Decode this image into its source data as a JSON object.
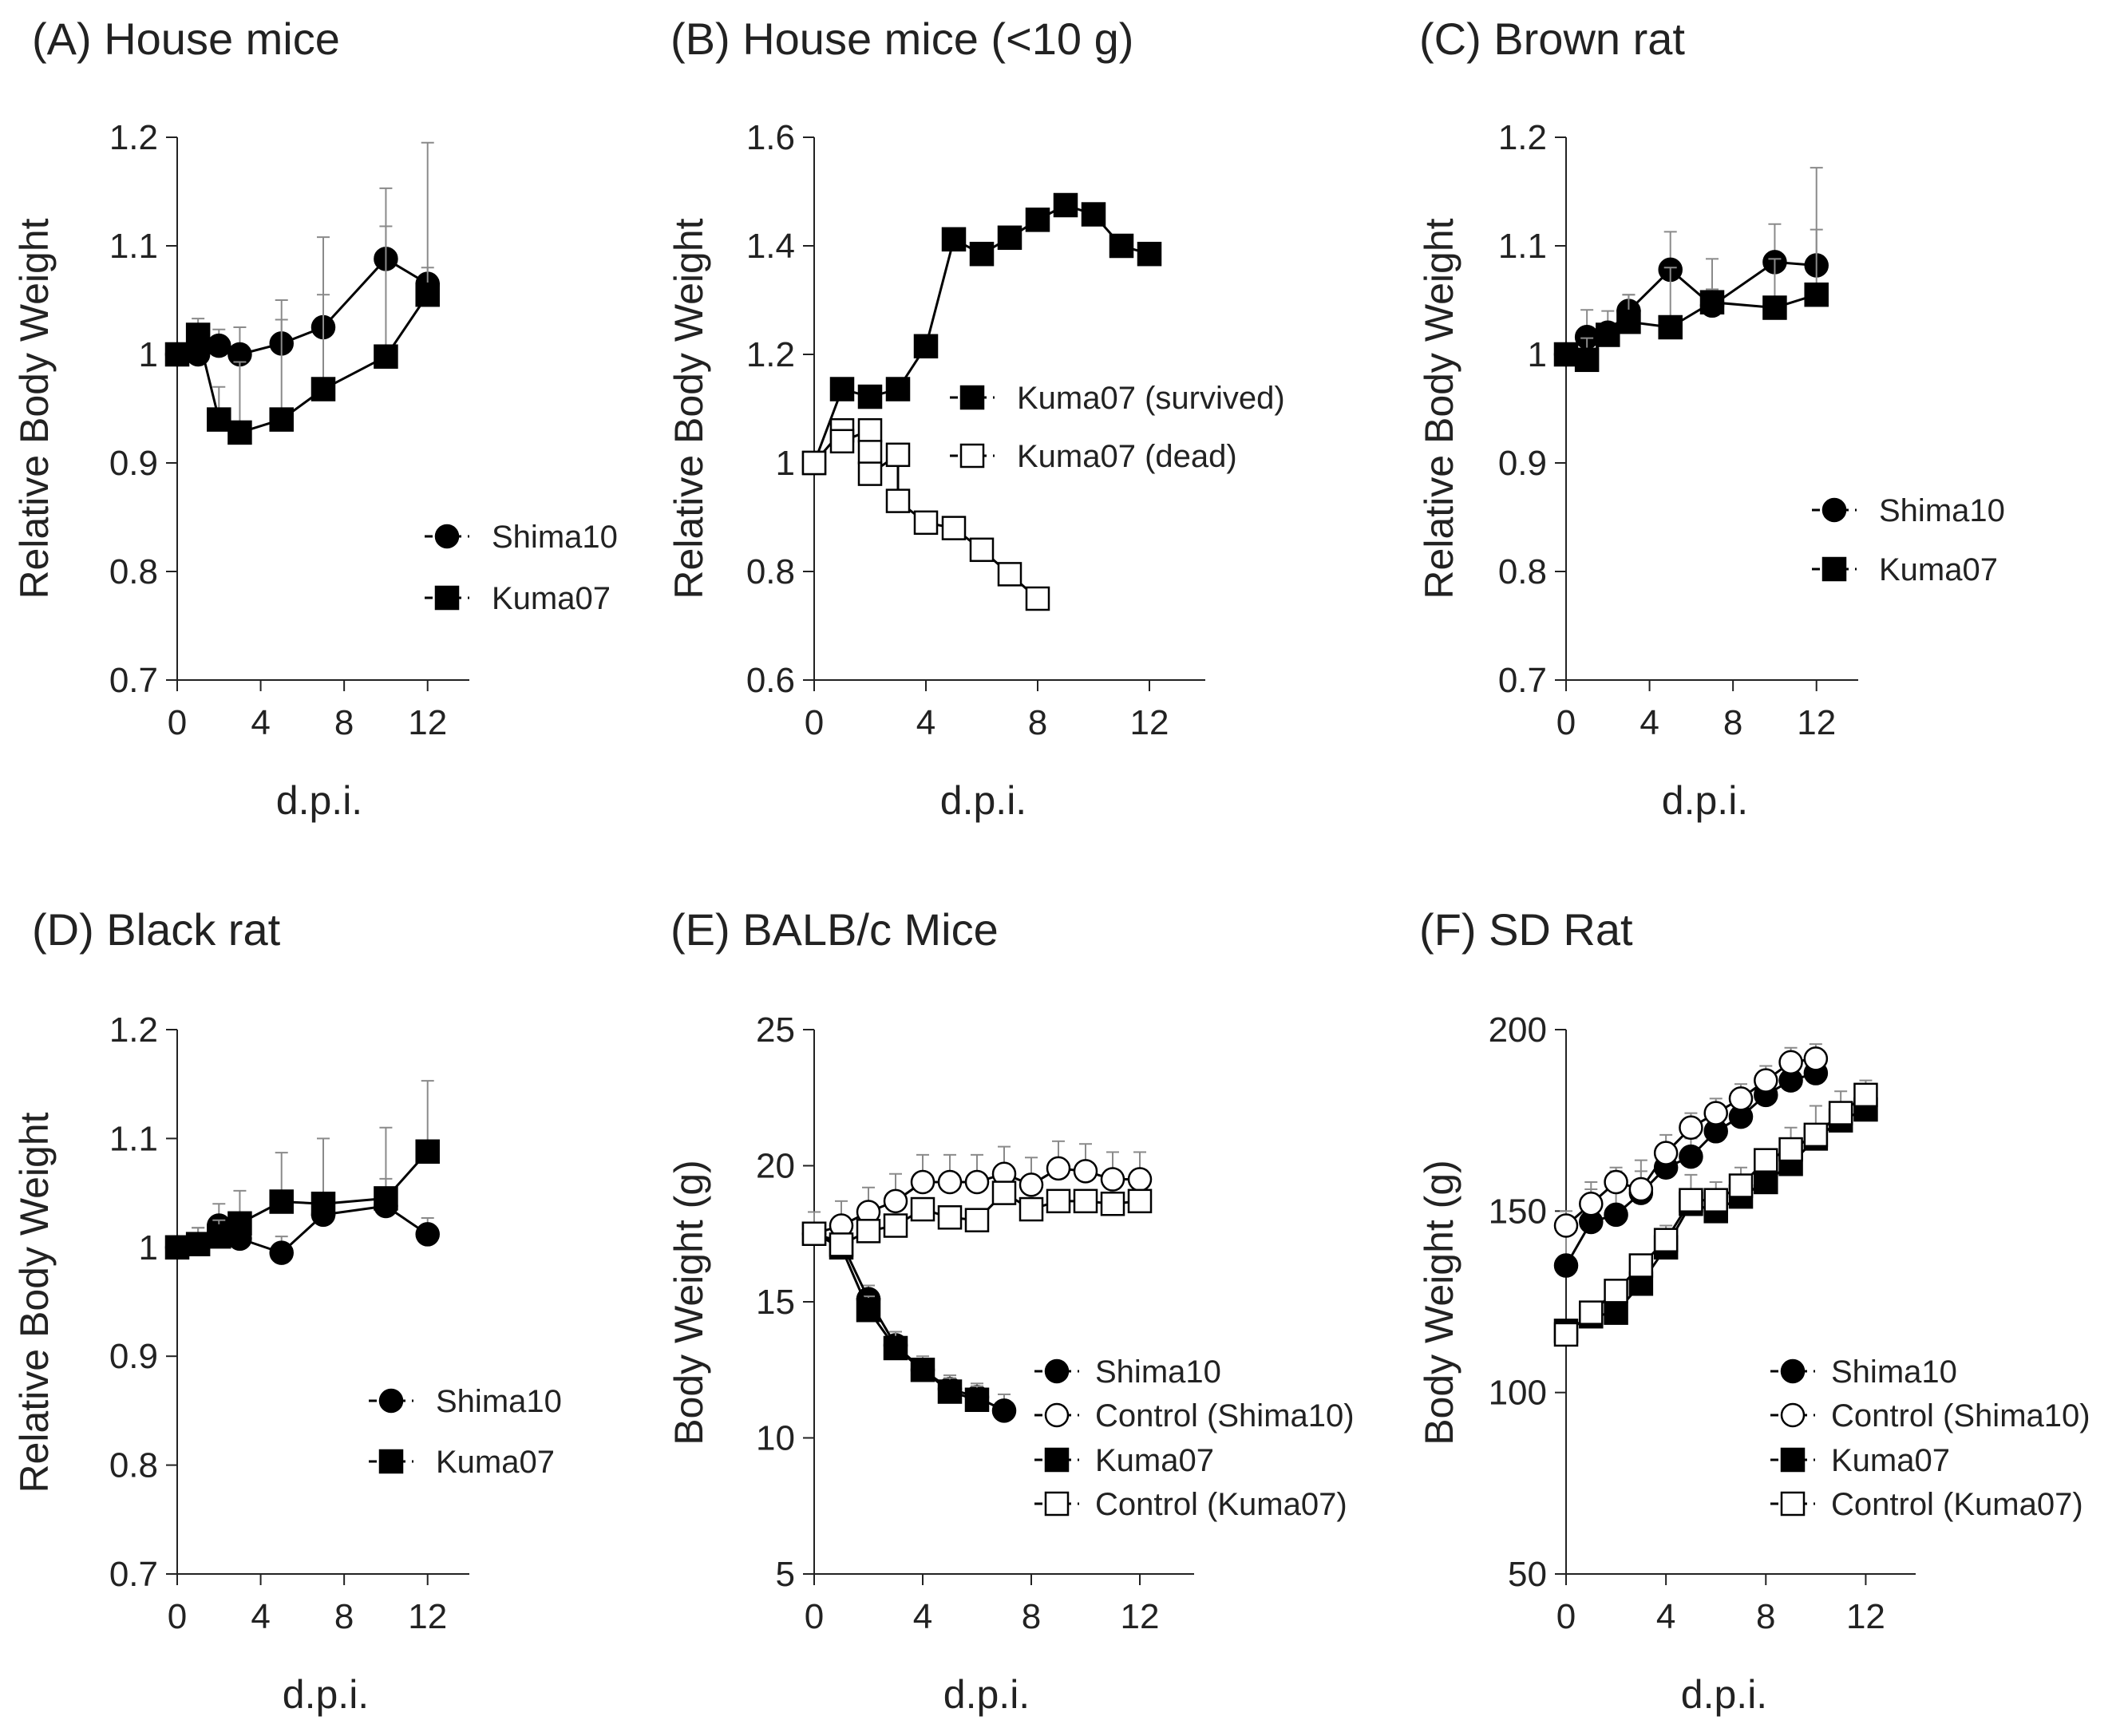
{
  "colors": {
    "ink": "#000000",
    "axis": "#222222",
    "error_bar": "#8a8a8a",
    "open_fill": "#ffffff"
  },
  "chart_data": [
    {
      "id": "A",
      "type": "line",
      "title": "(A) House mice",
      "xlabel": "d.p.i.",
      "ylabel": "Relative Body Weight",
      "xlim": [
        0,
        14
      ],
      "ylim": [
        0.7,
        1.2
      ],
      "xticks": [
        "0",
        "4",
        "8",
        "12"
      ],
      "xtick_values": [
        0,
        4,
        8,
        12
      ],
      "yticks": [
        "0.7",
        "0.8",
        "0.9",
        "1",
        "1.1",
        "1.2"
      ],
      "ytick_values": [
        0.7,
        0.8,
        0.9,
        1.0,
        1.1,
        1.2
      ],
      "legend_position": "right",
      "series": [
        {
          "name": "Shima10",
          "marker": "circle",
          "filled": true,
          "x": [
            0,
            1,
            2,
            3,
            5,
            7,
            10,
            12
          ],
          "y": [
            1.0,
            1.0,
            1.008,
            1.0,
            1.01,
            1.025,
            1.088,
            1.065
          ],
          "err": [
            0,
            0.02,
            0.015,
            0.025,
            0.022,
            0.03,
            0.03,
            0.015
          ]
        },
        {
          "name": "Kuma07",
          "marker": "square",
          "filled": true,
          "x": [
            0,
            1,
            2,
            3,
            5,
            7,
            10,
            12
          ],
          "y": [
            1.0,
            1.018,
            0.94,
            0.928,
            0.94,
            0.968,
            0.998,
            1.055
          ],
          "err": [
            0,
            0.015,
            0.03,
            0.065,
            0.11,
            0.14,
            0.155,
            0.14
          ]
        }
      ]
    },
    {
      "id": "B",
      "type": "line",
      "title": "(B) House mice (<10 g)",
      "xlabel": "d.p.i.",
      "ylabel": "Relative Body Weight",
      "xlim": [
        0,
        14
      ],
      "ylim": [
        0.6,
        1.6
      ],
      "xticks": [
        "0",
        "4",
        "8",
        "12"
      ],
      "xtick_values": [
        0,
        4,
        8,
        12
      ],
      "yticks": [
        "0.6",
        "0.8",
        "1",
        "1.2",
        "1.4",
        "1.6"
      ],
      "ytick_values": [
        0.6,
        0.8,
        1.0,
        1.2,
        1.4,
        1.6
      ],
      "legend_position": "center",
      "series": [
        {
          "name": "Kuma07 (survived)",
          "marker": "square",
          "filled": true,
          "x": [
            0,
            1,
            2,
            3,
            4,
            5,
            6,
            7,
            8,
            9,
            10,
            11,
            12
          ],
          "y": [
            1.0,
            1.136,
            1.122,
            1.136,
            1.215,
            1.412,
            1.385,
            1.415,
            1.448,
            1.475,
            1.458,
            1.4,
            1.385
          ],
          "err": [
            0,
            0,
            0,
            0,
            0,
            0,
            0,
            0,
            0,
            0,
            0,
            0,
            0
          ]
        },
        {
          "name": "Kuma07 (dead)",
          "marker": "square",
          "filled": false,
          "x": [
            0,
            1,
            1,
            2,
            2,
            2,
            3,
            3,
            4,
            5,
            6,
            7,
            8
          ],
          "y": [
            1.0,
            1.06,
            1.04,
            1.06,
            1.02,
            0.98,
            1.015,
            0.93,
            0.89,
            0.88,
            0.84,
            0.795,
            0.75
          ],
          "err": [
            0,
            0,
            0,
            0,
            0,
            0,
            0,
            0,
            0,
            0,
            0,
            0,
            0
          ]
        }
      ]
    },
    {
      "id": "C",
      "type": "line",
      "title": "(C) Brown rat",
      "xlabel": "d.p.i.",
      "ylabel": "Relative Body Weight",
      "xlim": [
        0,
        14
      ],
      "ylim": [
        0.7,
        1.2
      ],
      "xticks": [
        "0",
        "4",
        "8",
        "12"
      ],
      "xtick_values": [
        0,
        4,
        8,
        12
      ],
      "yticks": [
        "0.7",
        "0.8",
        "0.9",
        "1",
        "1.1",
        "1.2"
      ],
      "ytick_values": [
        0.7,
        0.8,
        0.9,
        1.0,
        1.1,
        1.2
      ],
      "legend_position": "right",
      "series": [
        {
          "name": "Shima10",
          "marker": "circle",
          "filled": true,
          "x": [
            0,
            1,
            2,
            3,
            5,
            7,
            10,
            12
          ],
          "y": [
            1.0,
            1.016,
            1.02,
            1.04,
            1.078,
            1.045,
            1.085,
            1.082
          ],
          "err": [
            0,
            0.025,
            0.02,
            0.015,
            0.035,
            0.015,
            0.035,
            0.09
          ]
        },
        {
          "name": "Kuma07",
          "marker": "square",
          "filled": true,
          "x": [
            0,
            1,
            2,
            3,
            5,
            7,
            10,
            12
          ],
          "y": [
            1.0,
            0.995,
            1.018,
            1.03,
            1.025,
            1.048,
            1.043,
            1.055
          ],
          "err": [
            0,
            0.02,
            0.01,
            0.025,
            0.055,
            0.04,
            0.045,
            0.06
          ]
        }
      ]
    },
    {
      "id": "D",
      "type": "line",
      "title": "(D) Black rat",
      "xlabel": "d.p.i.",
      "ylabel": "Relative Body Weight",
      "xlim": [
        0,
        14
      ],
      "ylim": [
        0.7,
        1.2
      ],
      "xticks": [
        "0",
        "4",
        "8",
        "12"
      ],
      "xtick_values": [
        0,
        4,
        8,
        12
      ],
      "yticks": [
        "0.7",
        "0.8",
        "0.9",
        "1",
        "1.1",
        "1.2"
      ],
      "ytick_values": [
        0.7,
        0.8,
        0.9,
        1.0,
        1.1,
        1.2
      ],
      "legend_position": "bottom-right",
      "series": [
        {
          "name": "Shima10",
          "marker": "circle",
          "filled": true,
          "x": [
            0,
            1,
            2,
            3,
            5,
            7,
            10,
            12
          ],
          "y": [
            1.0,
            1.003,
            1.02,
            1.008,
            0.995,
            1.03,
            1.038,
            1.012
          ],
          "err": [
            0,
            0.015,
            0.02,
            0.015,
            0.015,
            0.01,
            0.025,
            0.015
          ]
        },
        {
          "name": "Kuma07",
          "marker": "square",
          "filled": true,
          "x": [
            0,
            1,
            2,
            3,
            5,
            7,
            10,
            12
          ],
          "y": [
            1.0,
            1.003,
            1.01,
            1.022,
            1.042,
            1.04,
            1.045,
            1.088
          ],
          "err": [
            0,
            0.015,
            0.015,
            0.03,
            0.045,
            0.06,
            0.065,
            0.065
          ]
        }
      ]
    },
    {
      "id": "E",
      "type": "line",
      "title": "(E) BALB/c Mice",
      "xlabel": "d.p.i.",
      "ylabel": "Body Weight (g)",
      "xlim": [
        0,
        14
      ],
      "ylim": [
        5,
        25
      ],
      "xticks": [
        "0",
        "4",
        "8",
        "12"
      ],
      "xtick_values": [
        0,
        4,
        8,
        12
      ],
      "yticks": [
        "5",
        "10",
        "15",
        "20",
        "25"
      ],
      "ytick_values": [
        5,
        10,
        15,
        20,
        25
      ],
      "legend_position": "bottom-right",
      "series": [
        {
          "name": "Shima10",
          "marker": "circle",
          "filled": true,
          "x": [
            0,
            1,
            2,
            3,
            4,
            5,
            6,
            7
          ],
          "y": [
            17.5,
            17.2,
            15.1,
            13.4,
            12.5,
            11.8,
            11.5,
            11.0
          ],
          "err": [
            0,
            0.4,
            0.5,
            0.5,
            0.4,
            0.5,
            0.5,
            0.6
          ]
        },
        {
          "name": "Control (Shima10)",
          "marker": "circle",
          "filled": false,
          "x": [
            0,
            1,
            2,
            3,
            4,
            5,
            6,
            7,
            8,
            9,
            10,
            11,
            12
          ],
          "y": [
            17.5,
            17.8,
            18.3,
            18.7,
            19.4,
            19.4,
            19.4,
            19.7,
            19.3,
            19.9,
            19.8,
            19.5,
            19.5
          ],
          "err": [
            0.8,
            0.9,
            0.9,
            1.0,
            1.0,
            1.0,
            1.0,
            1.0,
            1.0,
            1.0,
            1.0,
            1.0,
            1.0
          ]
        },
        {
          "name": "Kuma07",
          "marker": "square",
          "filled": true,
          "x": [
            0,
            1,
            2,
            3,
            4,
            5,
            6
          ],
          "y": [
            17.5,
            17.0,
            14.7,
            13.3,
            12.5,
            11.7,
            11.4
          ],
          "err": [
            0,
            0.4,
            0.5,
            0.6,
            0.5,
            0.5,
            0.5
          ]
        },
        {
          "name": "Control (Kuma07)",
          "marker": "square",
          "filled": false,
          "x": [
            0,
            1,
            2,
            3,
            4,
            5,
            6,
            7,
            8,
            9,
            10,
            11,
            12
          ],
          "y": [
            17.5,
            17.1,
            17.6,
            17.8,
            18.4,
            18.1,
            18.0,
            19.0,
            18.4,
            18.7,
            18.7,
            18.6,
            18.7
          ],
          "err": [
            0,
            0,
            0,
            0,
            0,
            0,
            0,
            0,
            0,
            0,
            0,
            0,
            0
          ]
        }
      ]
    },
    {
      "id": "F",
      "type": "line",
      "title": "(F) SD Rat",
      "xlabel": "d.p.i.",
      "ylabel": "Body Weight (g)",
      "xlim": [
        0,
        14
      ],
      "ylim": [
        50,
        200
      ],
      "xticks": [
        "0",
        "4",
        "8",
        "12"
      ],
      "xtick_values": [
        0,
        4,
        8,
        12
      ],
      "yticks": [
        "50",
        "100",
        "150",
        "200"
      ],
      "ytick_values": [
        50,
        100,
        150,
        200
      ],
      "legend_position": "bottom-right",
      "series": [
        {
          "name": "Shima10",
          "marker": "circle",
          "filled": true,
          "x": [
            0,
            1,
            2,
            3,
            4,
            5,
            6,
            7,
            8,
            9,
            10
          ],
          "y": [
            135,
            147,
            149,
            155,
            162,
            165,
            172,
            176,
            182,
            186,
            188
          ],
          "err": [
            10,
            11,
            12,
            9,
            6,
            5,
            6,
            6,
            6,
            6,
            6
          ]
        },
        {
          "name": "Control (Shima10)",
          "marker": "circle",
          "filled": false,
          "x": [
            0,
            1,
            2,
            3,
            4,
            5,
            6,
            7,
            8,
            9,
            10
          ],
          "y": [
            146,
            152,
            158,
            156,
            166,
            173,
            177,
            181,
            186,
            191,
            192
          ],
          "err": [
            4,
            4,
            4,
            5,
            5,
            4,
            4,
            4,
            4,
            4,
            4
          ]
        },
        {
          "name": "Kuma07",
          "marker": "square",
          "filled": true,
          "x": [
            0,
            1,
            2,
            3,
            4,
            5,
            6,
            7,
            8,
            9,
            10,
            11,
            12
          ],
          "y": [
            117,
            121,
            122,
            130,
            140,
            152,
            150,
            154,
            158,
            163,
            170,
            175,
            178
          ],
          "err": [
            3,
            3,
            3,
            4,
            6,
            8,
            8,
            8,
            9,
            10,
            9,
            8,
            8
          ]
        },
        {
          "name": "Control (Kuma07)",
          "marker": "square",
          "filled": false,
          "x": [
            0,
            1,
            2,
            3,
            4,
            5,
            6,
            7,
            8,
            9,
            10,
            11,
            12
          ],
          "y": [
            116,
            122,
            128,
            135,
            142,
            153,
            153,
            157,
            164,
            167,
            171,
            177,
            182
          ],
          "err": [
            0,
            0,
            0,
            0,
            0,
            0,
            0,
            0,
            0,
            0,
            0,
            0,
            0
          ]
        }
      ]
    }
  ]
}
